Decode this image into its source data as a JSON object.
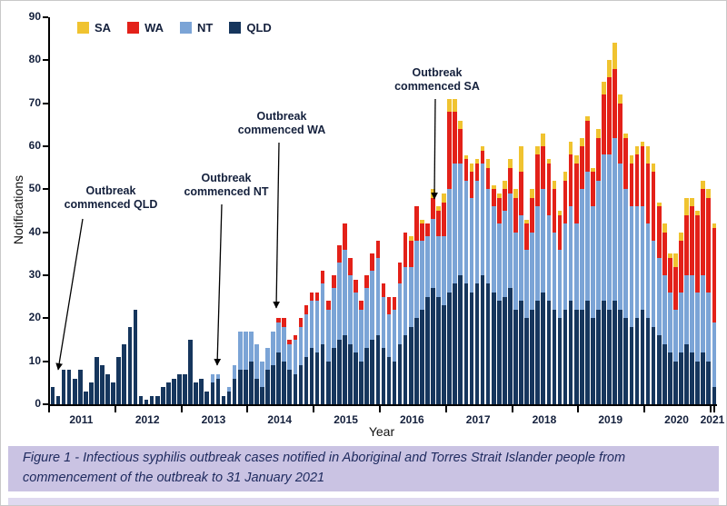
{
  "figure": {
    "caption": "Figure 1 - Infectious syphilis outbreak cases notified in Aboriginal and Torres Strait Islander people from commencement of the outbreak to 31 January 2021"
  },
  "colors": {
    "caption_bg": "#cac3e3",
    "caption_text": "#1e2a5e",
    "axis": "#000000",
    "sa": "#f0c330",
    "wa": "#e32119",
    "nt": "#7ba4d6",
    "qld": "#16365d"
  },
  "chart_data": {
    "type": "bar",
    "stacked": true,
    "title": "",
    "xlabel": "Year",
    "ylabel": "Notifications",
    "ylim": [
      0,
      90
    ],
    "ytick_interval": 10,
    "x_unit": "month",
    "x_range": [
      "2011-01",
      "2021-01"
    ],
    "year_labels": [
      "2011",
      "2012",
      "2013",
      "2014",
      "2015",
      "2016",
      "2017",
      "2018",
      "2019",
      "2020",
      "2021"
    ],
    "legend": [
      {
        "name": "SA",
        "color": "#f0c330"
      },
      {
        "name": "WA",
        "color": "#e32119"
      },
      {
        "name": "NT",
        "color": "#7ba4d6"
      },
      {
        "name": "QLD",
        "color": "#16365d"
      }
    ],
    "series": [
      {
        "name": "QLD",
        "color": "#16365d",
        "values": [
          4,
          2,
          8,
          8,
          6,
          8,
          3,
          5,
          11,
          9,
          7,
          5,
          11,
          14,
          18,
          22,
          2,
          1,
          2,
          2,
          4,
          5,
          6,
          7,
          7,
          15,
          5,
          6,
          3,
          5,
          6,
          2,
          3,
          6,
          8,
          8,
          10,
          6,
          4,
          8,
          9,
          12,
          10,
          8,
          7,
          9,
          11,
          13,
          12,
          14,
          10,
          13,
          15,
          16,
          14,
          12,
          10,
          13,
          15,
          16,
          13,
          11,
          10,
          14,
          16,
          18,
          20,
          22,
          25,
          27,
          25,
          23,
          26,
          28,
          30,
          28,
          26,
          28,
          30,
          28,
          26,
          24,
          25,
          27,
          22,
          24,
          20,
          22,
          24,
          26,
          24,
          22,
          20,
          22,
          24,
          22,
          22,
          24,
          20,
          22,
          24,
          22,
          24,
          22,
          20,
          18,
          20,
          22,
          20,
          18,
          16,
          14,
          12,
          10,
          12,
          14,
          12,
          10,
          12,
          10,
          4
        ]
      },
      {
        "name": "NT",
        "color": "#7ba4d6",
        "values": [
          0,
          0,
          0,
          0,
          0,
          0,
          0,
          0,
          0,
          0,
          0,
          0,
          0,
          0,
          0,
          0,
          0,
          0,
          0,
          0,
          0,
          0,
          0,
          0,
          0,
          0,
          0,
          0,
          0,
          2,
          1,
          0,
          1,
          3,
          9,
          9,
          7,
          8,
          6,
          5,
          8,
          7,
          8,
          6,
          8,
          9,
          10,
          11,
          12,
          14,
          12,
          14,
          18,
          20,
          16,
          14,
          12,
          14,
          16,
          18,
          12,
          10,
          12,
          14,
          16,
          14,
          18,
          16,
          14,
          16,
          14,
          16,
          24,
          28,
          26,
          24,
          22,
          24,
          26,
          22,
          20,
          18,
          20,
          22,
          18,
          20,
          16,
          18,
          22,
          24,
          20,
          18,
          16,
          20,
          22,
          20,
          28,
          30,
          26,
          30,
          34,
          36,
          38,
          34,
          30,
          28,
          26,
          24,
          22,
          20,
          18,
          16,
          14,
          12,
          14,
          16,
          18,
          16,
          18,
          16,
          15
        ]
      },
      {
        "name": "WA",
        "color": "#e32119",
        "values": [
          0,
          0,
          0,
          0,
          0,
          0,
          0,
          0,
          0,
          0,
          0,
          0,
          0,
          0,
          0,
          0,
          0,
          0,
          0,
          0,
          0,
          0,
          0,
          0,
          0,
          0,
          0,
          0,
          0,
          0,
          0,
          0,
          0,
          0,
          0,
          0,
          0,
          0,
          0,
          0,
          0,
          1,
          2,
          1,
          1,
          2,
          2,
          2,
          2,
          3,
          2,
          3,
          4,
          6,
          4,
          3,
          2,
          3,
          4,
          4,
          3,
          4,
          3,
          5,
          8,
          6,
          8,
          4,
          3,
          5,
          6,
          8,
          18,
          12,
          8,
          5,
          6,
          4,
          3,
          5,
          4,
          6,
          5,
          6,
          8,
          10,
          6,
          8,
          12,
          10,
          12,
          10,
          8,
          10,
          12,
          14,
          10,
          12,
          8,
          10,
          14,
          18,
          16,
          14,
          12,
          10,
          12,
          14,
          14,
          16,
          12,
          10,
          8,
          10,
          12,
          14,
          16,
          18,
          20,
          22,
          22
        ]
      },
      {
        "name": "SA",
        "color": "#f0c330",
        "values": [
          0,
          0,
          0,
          0,
          0,
          0,
          0,
          0,
          0,
          0,
          0,
          0,
          0,
          0,
          0,
          0,
          0,
          0,
          0,
          0,
          0,
          0,
          0,
          0,
          0,
          0,
          0,
          0,
          0,
          0,
          0,
          0,
          0,
          0,
          0,
          0,
          0,
          0,
          0,
          0,
          0,
          0,
          0,
          0,
          0,
          0,
          0,
          0,
          0,
          0,
          0,
          0,
          0,
          0,
          0,
          0,
          0,
          0,
          0,
          0,
          0,
          0,
          0,
          0,
          0,
          1,
          0,
          1,
          0,
          2,
          1,
          2,
          3,
          3,
          2,
          1,
          2,
          1,
          1,
          2,
          1,
          1,
          2,
          2,
          2,
          6,
          1,
          2,
          2,
          3,
          1,
          2,
          1,
          2,
          3,
          2,
          2,
          1,
          1,
          2,
          3,
          4,
          6,
          2,
          1,
          2,
          2,
          1,
          4,
          2,
          1,
          2,
          1,
          3,
          2,
          4,
          2,
          1,
          2,
          2,
          1
        ]
      }
    ],
    "annotations": [
      {
        "lines": [
          "Outbreak",
          "commenced QLD"
        ],
        "text_x": 121,
        "text_top": 202,
        "arrow": [
          90,
          240,
          63,
          406
        ]
      },
      {
        "lines": [
          "Outbreak",
          "commenced NT"
        ],
        "text_x": 248,
        "text_top": 188,
        "arrow": [
          243,
          224,
          238,
          401
        ]
      },
      {
        "lines": [
          "Outbreak",
          "commenced WA"
        ],
        "text_x": 309,
        "text_top": 120,
        "arrow": [
          306,
          156,
          303,
          338
        ]
      },
      {
        "lines": [
          "Outbreak",
          "commenced SA"
        ],
        "text_x": 480,
        "text_top": 72,
        "arrow": [
          478,
          108,
          477,
          218
        ]
      }
    ]
  }
}
